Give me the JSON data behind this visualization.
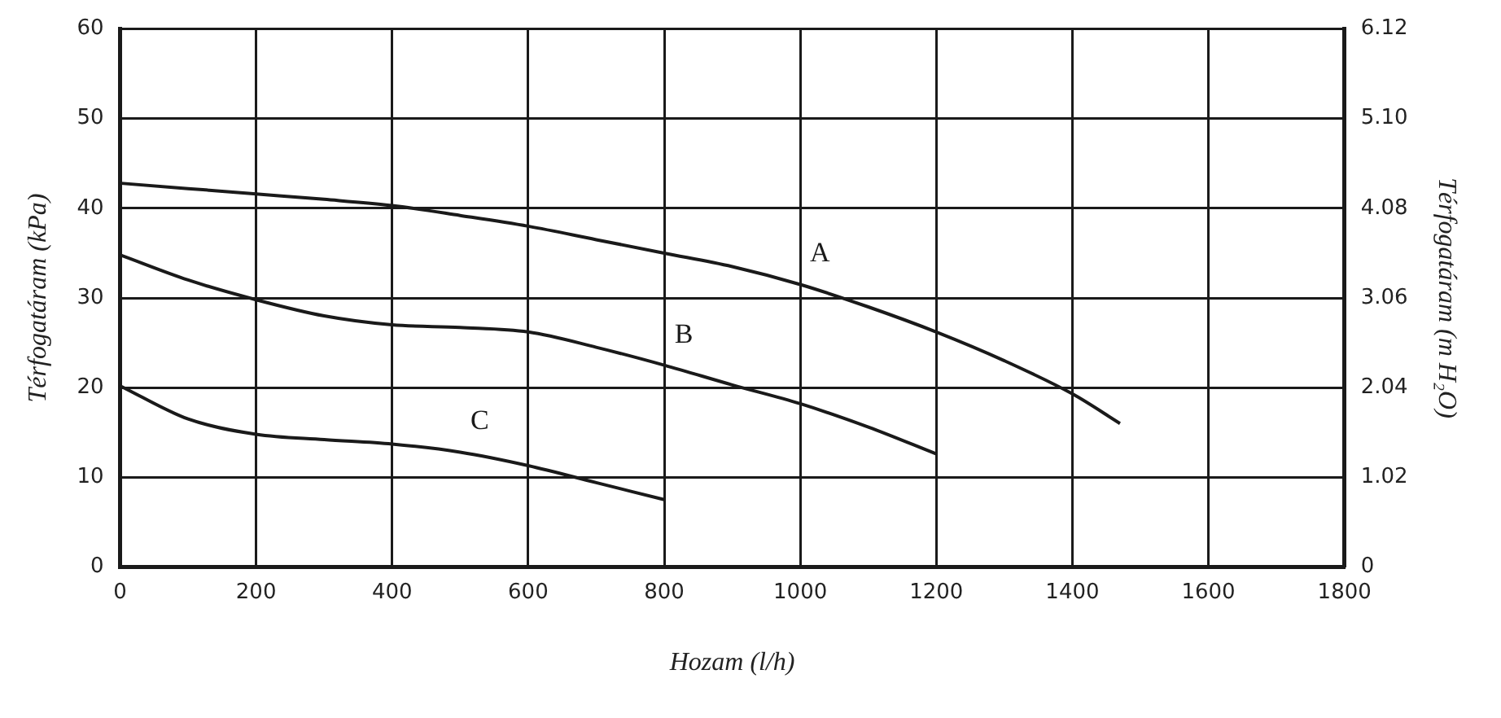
{
  "chart_data": {
    "type": "line",
    "xlabel": "Hozam (l/h)",
    "ylabel": "Térfogatáram (kPa)",
    "y2label": "Térfogatáram (m H₂O)",
    "xlim": [
      0,
      1800
    ],
    "xticks": [
      0,
      200,
      400,
      600,
      800,
      1000,
      1200,
      1400,
      1600,
      1800
    ],
    "ylim": [
      0,
      60
    ],
    "yticks": [
      0,
      10,
      20,
      30,
      40,
      50,
      60
    ],
    "y2lim": [
      0,
      6.12
    ],
    "y2ticks": [
      0,
      1.02,
      2.04,
      3.06,
      4.08,
      {
        "value": 5.1,
        "label": "5.10"
      },
      6.12
    ],
    "grid": true,
    "legend": false,
    "marker": "none",
    "line_style": "solid",
    "series": [
      {
        "name": "A",
        "color": "#1a1a1a",
        "x": [
          0,
          100,
          200,
          300,
          400,
          500,
          600,
          700,
          800,
          900,
          1000,
          1100,
          1200,
          1300,
          1400,
          1470
        ],
        "values": [
          42.8,
          42.2,
          41.6,
          41,
          40.3,
          39.2,
          38,
          36.5,
          35,
          33.5,
          31.5,
          29,
          26.2,
          23,
          19.3,
          16
        ]
      },
      {
        "name": "B",
        "color": "#1a1a1a",
        "x": [
          0,
          100,
          200,
          300,
          400,
          500,
          600,
          700,
          800,
          900,
          1000,
          1100,
          1200
        ],
        "values": [
          34.8,
          32,
          29.8,
          28,
          27,
          26.7,
          26.2,
          24.5,
          22.5,
          20.3,
          18.2,
          15.6,
          12.6
        ]
      },
      {
        "name": "C",
        "color": "#1a1a1a",
        "x": [
          0,
          100,
          200,
          300,
          400,
          500,
          600,
          700,
          800
        ],
        "values": [
          20.2,
          16.5,
          14.8,
          14.2,
          13.7,
          12.8,
          11.3,
          9.4,
          7.5
        ]
      }
    ]
  }
}
